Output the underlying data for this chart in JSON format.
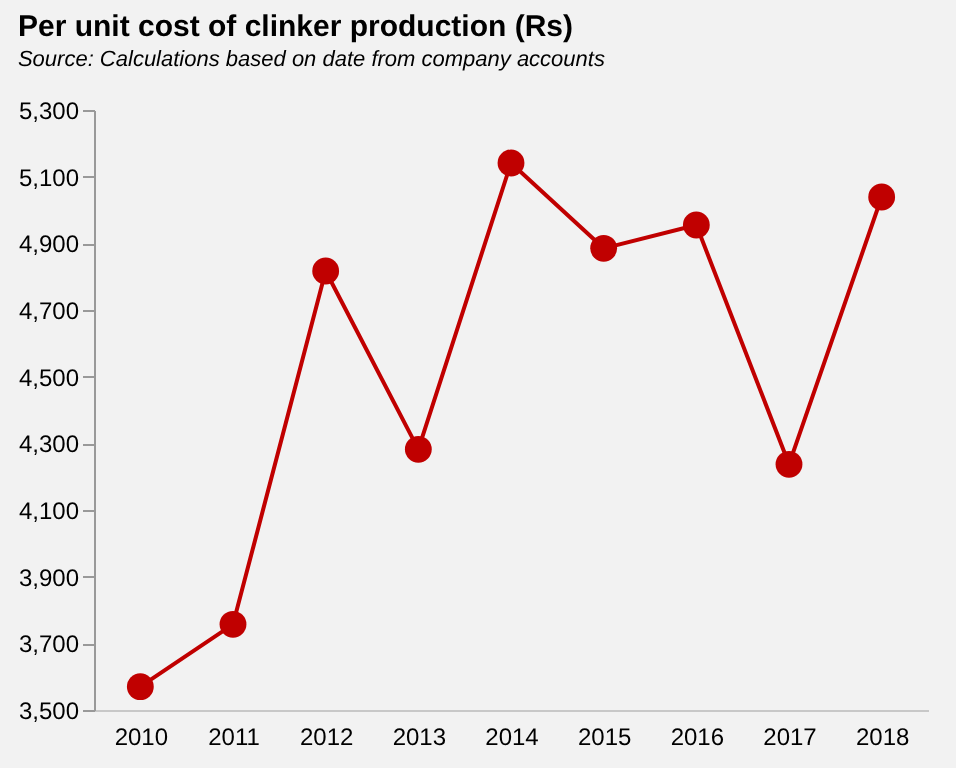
{
  "chart_data": {
    "type": "line",
    "title": "Per unit cost of clinker production (Rs)",
    "annotations": [
      "Source: Calculations based on date from company accounts"
    ],
    "categories": [
      "2010",
      "2011",
      "2012",
      "2013",
      "2014",
      "2015",
      "2016",
      "2017",
      "2018"
    ],
    "series": [
      {
        "color": "#c00000",
        "values": [
          3570,
          3757,
          4817,
          4282,
          5141,
          4885,
          4955,
          4237,
          5039
        ]
      }
    ],
    "ylim": [
      3500,
      5300
    ],
    "yticks": [
      {
        "value": 3500,
        "label": "3,500"
      },
      {
        "value": 3700,
        "label": "3,700"
      },
      {
        "value": 3900,
        "label": "3,900"
      },
      {
        "value": 4100,
        "label": "4,100"
      },
      {
        "value": 4300,
        "label": "4,300"
      },
      {
        "value": 4500,
        "label": "4,500"
      },
      {
        "value": 4700,
        "label": "4,700"
      },
      {
        "value": 4900,
        "label": "4,900"
      },
      {
        "value": 5100,
        "label": "5,100"
      },
      {
        "value": 5300,
        "label": "5,300"
      }
    ],
    "grid": false,
    "marker": "circle",
    "line_style": "solid"
  }
}
